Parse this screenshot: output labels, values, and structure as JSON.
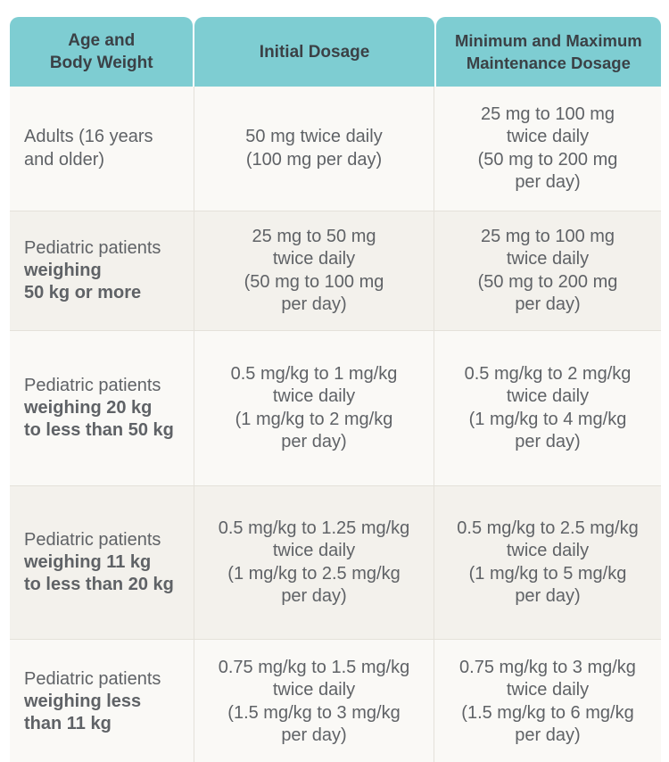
{
  "header": {
    "col1": [
      "Age and",
      "Body Weight"
    ],
    "col2": [
      "Initial Dosage"
    ],
    "col3": [
      "Minimum and Maximum",
      "Maintenance Dosage"
    ]
  },
  "rows": [
    {
      "age": [
        {
          "text": "Adults (16 years",
          "bold": false
        },
        {
          "text": "and older)",
          "bold": false
        }
      ],
      "initial": [
        "50 mg twice daily",
        "(100 mg per day)"
      ],
      "maintenance": [
        "25 mg to 100 mg",
        "twice daily",
        "(50 mg to 200 mg",
        "per day)"
      ]
    },
    {
      "age": [
        {
          "text": "Pediatric patients",
          "bold": false
        },
        {
          "text": "weighing",
          "bold": true
        },
        {
          "text": "50 kg or more",
          "bold": true
        }
      ],
      "initial": [
        "25 mg to 50 mg",
        "twice daily",
        "(50 mg to 100 mg",
        "per day)"
      ],
      "maintenance": [
        "25 mg to 100 mg",
        "twice daily",
        "(50 mg to 200 mg",
        "per day)"
      ]
    },
    {
      "age": [
        {
          "text": "Pediatric patients",
          "bold": false
        },
        {
          "text": "weighing 20 kg",
          "bold": true
        },
        {
          "text": "to less than 50 kg",
          "bold": true
        }
      ],
      "initial": [
        "0.5 mg/kg to 1 mg/kg",
        "twice daily",
        "(1 mg/kg to 2 mg/kg",
        "per day)"
      ],
      "maintenance": [
        "0.5 mg/kg to 2 mg/kg",
        "twice daily",
        "(1 mg/kg to 4 mg/kg",
        "per day)"
      ]
    },
    {
      "age": [
        {
          "text": "Pediatric patients",
          "bold": false
        },
        {
          "text": "weighing 11 kg",
          "bold": true
        },
        {
          "text": "to less than 20 kg",
          "bold": true
        }
      ],
      "initial": [
        "0.5 mg/kg to 1.25 mg/kg",
        "twice daily",
        "(1 mg/kg to 2.5 mg/kg",
        "per day)"
      ],
      "maintenance": [
        "0.5 mg/kg to 2.5 mg/kg",
        "twice daily",
        "(1 mg/kg to 5 mg/kg",
        "per day)"
      ]
    },
    {
      "age": [
        {
          "text": "Pediatric patients",
          "bold": false
        },
        {
          "text": "weighing less",
          "bold": true
        },
        {
          "text": "than 11 kg",
          "bold": true
        }
      ],
      "initial": [
        "0.75 mg/kg to 1.5 mg/kg",
        "twice daily",
        "(1.5 mg/kg to 3 mg/kg",
        "per day)"
      ],
      "maintenance": [
        "0.75 mg/kg to 3 mg/kg",
        "twice daily",
        "(1.5 mg/kg to 6 mg/kg",
        "per day)"
      ]
    }
  ]
}
